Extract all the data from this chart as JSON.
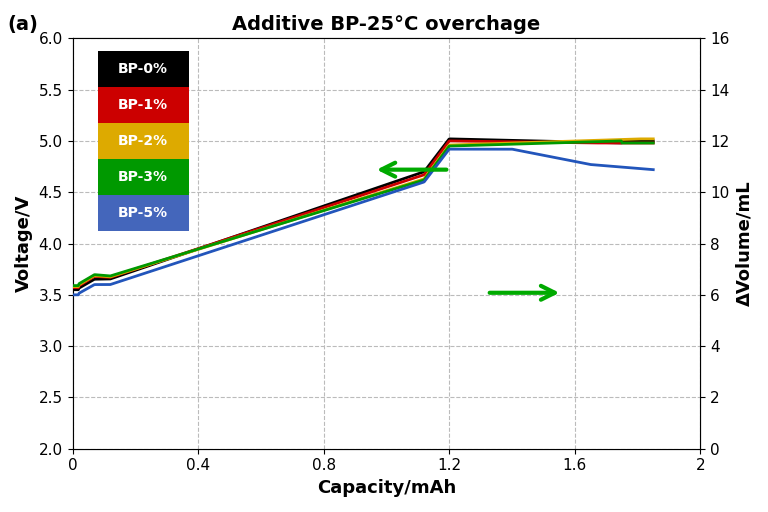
{
  "title": "Additive BP-25°C overchage",
  "panel_label": "(a)",
  "xlabel": "Capacity/mAh",
  "ylabel_left": "Voltage/V",
  "ylabel_right": "ΔVolume/mL",
  "xlim": [
    0,
    2
  ],
  "ylim_left": [
    2,
    6
  ],
  "ylim_right": [
    0,
    16
  ],
  "xticks": [
    0,
    0.4,
    0.8,
    1.2,
    1.6,
    2.0
  ],
  "xtick_labels": [
    "0",
    "0.4",
    "0.8",
    "1.2",
    "1.6",
    "2"
  ],
  "yticks_left": [
    2.0,
    2.5,
    3.0,
    3.5,
    4.0,
    4.5,
    5.0,
    5.5,
    6.0
  ],
  "yticks_right": [
    0,
    2,
    4,
    6,
    8,
    10,
    12,
    14,
    16
  ],
  "legend_labels": [
    "BP-0%",
    "BP-1%",
    "BP-2%",
    "BP-3%",
    "BP-5%"
  ],
  "legend_bg_colors": [
    "#000000",
    "#cc0000",
    "#ddaa00",
    "#009900",
    "#4466bb"
  ],
  "legend_text_colors": [
    "#ffffff",
    "#ffffff",
    "#ffffff",
    "#ffffff",
    "#ffffff"
  ],
  "volt_colors": [
    "#000000",
    "#cc0000",
    "#ddaa00",
    "#009900",
    "#2255bb"
  ],
  "vol_colors": [
    "#000000",
    "#cc0000",
    "#ddaa00",
    "#009900",
    "#2255bb"
  ],
  "background_color": "#ffffff",
  "grid_color": "#bbbbbb",
  "arrow_color": "#00aa00"
}
